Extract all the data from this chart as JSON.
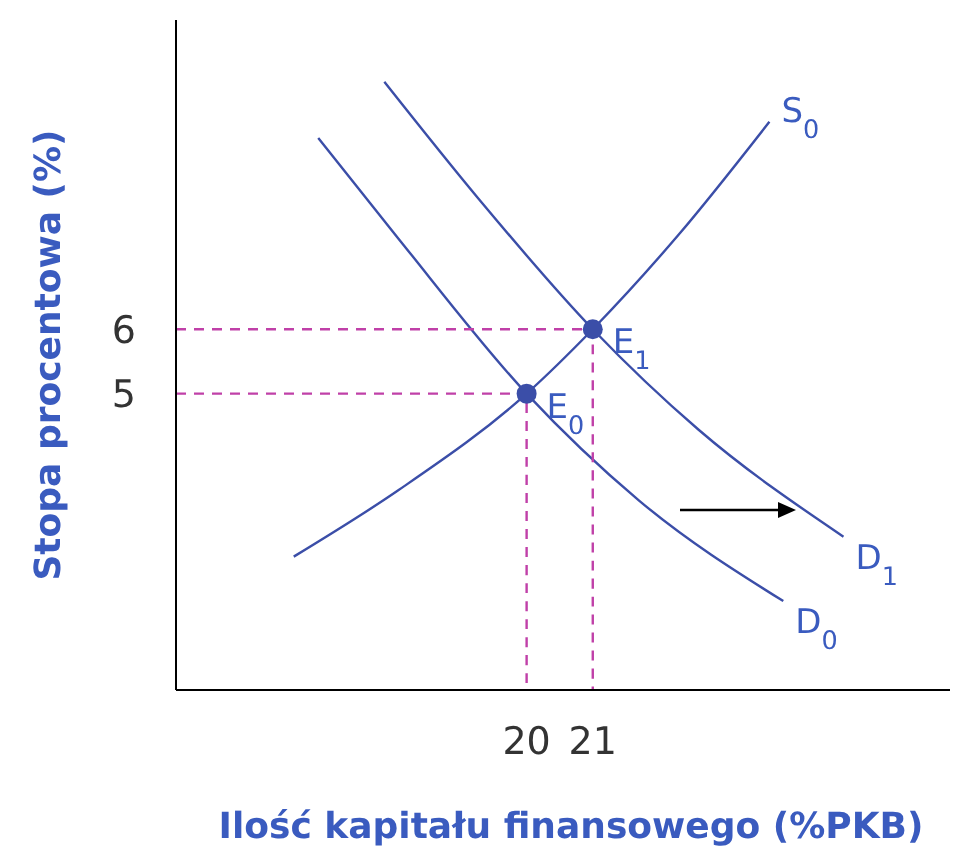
{
  "chart_data": {
    "type": "line",
    "xlabel": "Ilość kapitału finansowego (%PKB)",
    "ylabel": "Stopa procentowa (%)",
    "xlim": [
      14.7,
      26.4
    ],
    "ylim": [
      0.4,
      10.8
    ],
    "xticks": [
      20,
      21
    ],
    "yticks": [
      5,
      6
    ],
    "grid": false,
    "series": [
      {
        "name": "S$_{0}$",
        "color": "#3b4ea8",
        "x": [
          16.48,
          18.06,
          20,
          21,
          22.3,
          23.67
        ],
        "values": [
          2.47,
          3.5,
          5,
          6,
          7.47,
          9.22
        ]
      },
      {
        "name": "D$_{0}$",
        "color": "#3b4ea8",
        "x": [
          16.85,
          18.06,
          20,
          21.7,
          23.88
        ],
        "values": [
          8.97,
          7.41,
          5,
          3.34,
          1.78
        ]
      },
      {
        "name": "D$_{1}$",
        "color": "#3b4ea8",
        "x": [
          17.85,
          19.27,
          21,
          22.6,
          24.79
        ],
        "values": [
          9.84,
          8.03,
          6,
          4.44,
          2.78
        ]
      },
      {
        "color": "#c040a8",
        "line_style": "dashed",
        "x": [
          14.7,
          20,
          20
        ],
        "values": [
          5,
          5,
          0.4
        ]
      },
      {
        "color": "#c040a8",
        "line_style": "dashed",
        "x": [
          14.7,
          21,
          21
        ],
        "values": [
          6,
          6,
          0.4
        ]
      },
      {
        "type": "scatter",
        "marker": "circle",
        "color": "#3b4ea8",
        "x": [
          20,
          21
        ],
        "values": [
          5,
          6
        ]
      }
    ],
    "annotations": [
      {
        "text": "E$_{0}$",
        "x": 20,
        "y": 5
      },
      {
        "text": "E$_{1}$",
        "x": 21,
        "y": 6
      }
    ]
  }
}
